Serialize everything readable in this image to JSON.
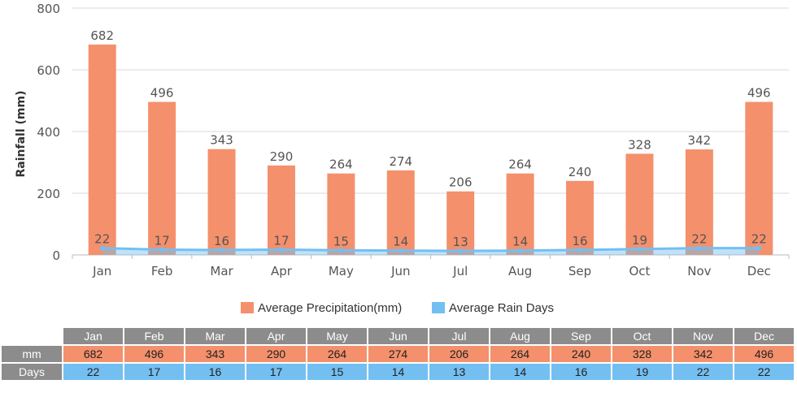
{
  "chart_data": {
    "type": "bar",
    "categories": [
      "Jan",
      "Feb",
      "Mar",
      "Apr",
      "May",
      "Jun",
      "Jul",
      "Aug",
      "Sep",
      "Oct",
      "Nov",
      "Dec"
    ],
    "series": [
      {
        "name": "Average Precipitation(mm)",
        "type": "bar",
        "color": "#f4906b",
        "values": [
          682,
          496,
          343,
          290,
          264,
          274,
          206,
          264,
          240,
          328,
          342,
          496
        ]
      },
      {
        "name": "Average Rain Days",
        "type": "line",
        "color": "#73bff2",
        "values": [
          22,
          17,
          16,
          17,
          15,
          14,
          13,
          14,
          16,
          19,
          22,
          22
        ]
      }
    ],
    "ylabel": "Rainfall (mm)",
    "ylim": [
      0,
      800
    ],
    "yticks": [
      0,
      200,
      400,
      600,
      800
    ],
    "grid": true,
    "legend_position": "bottom"
  },
  "table": {
    "row_labels": [
      "mm",
      "Days"
    ]
  }
}
